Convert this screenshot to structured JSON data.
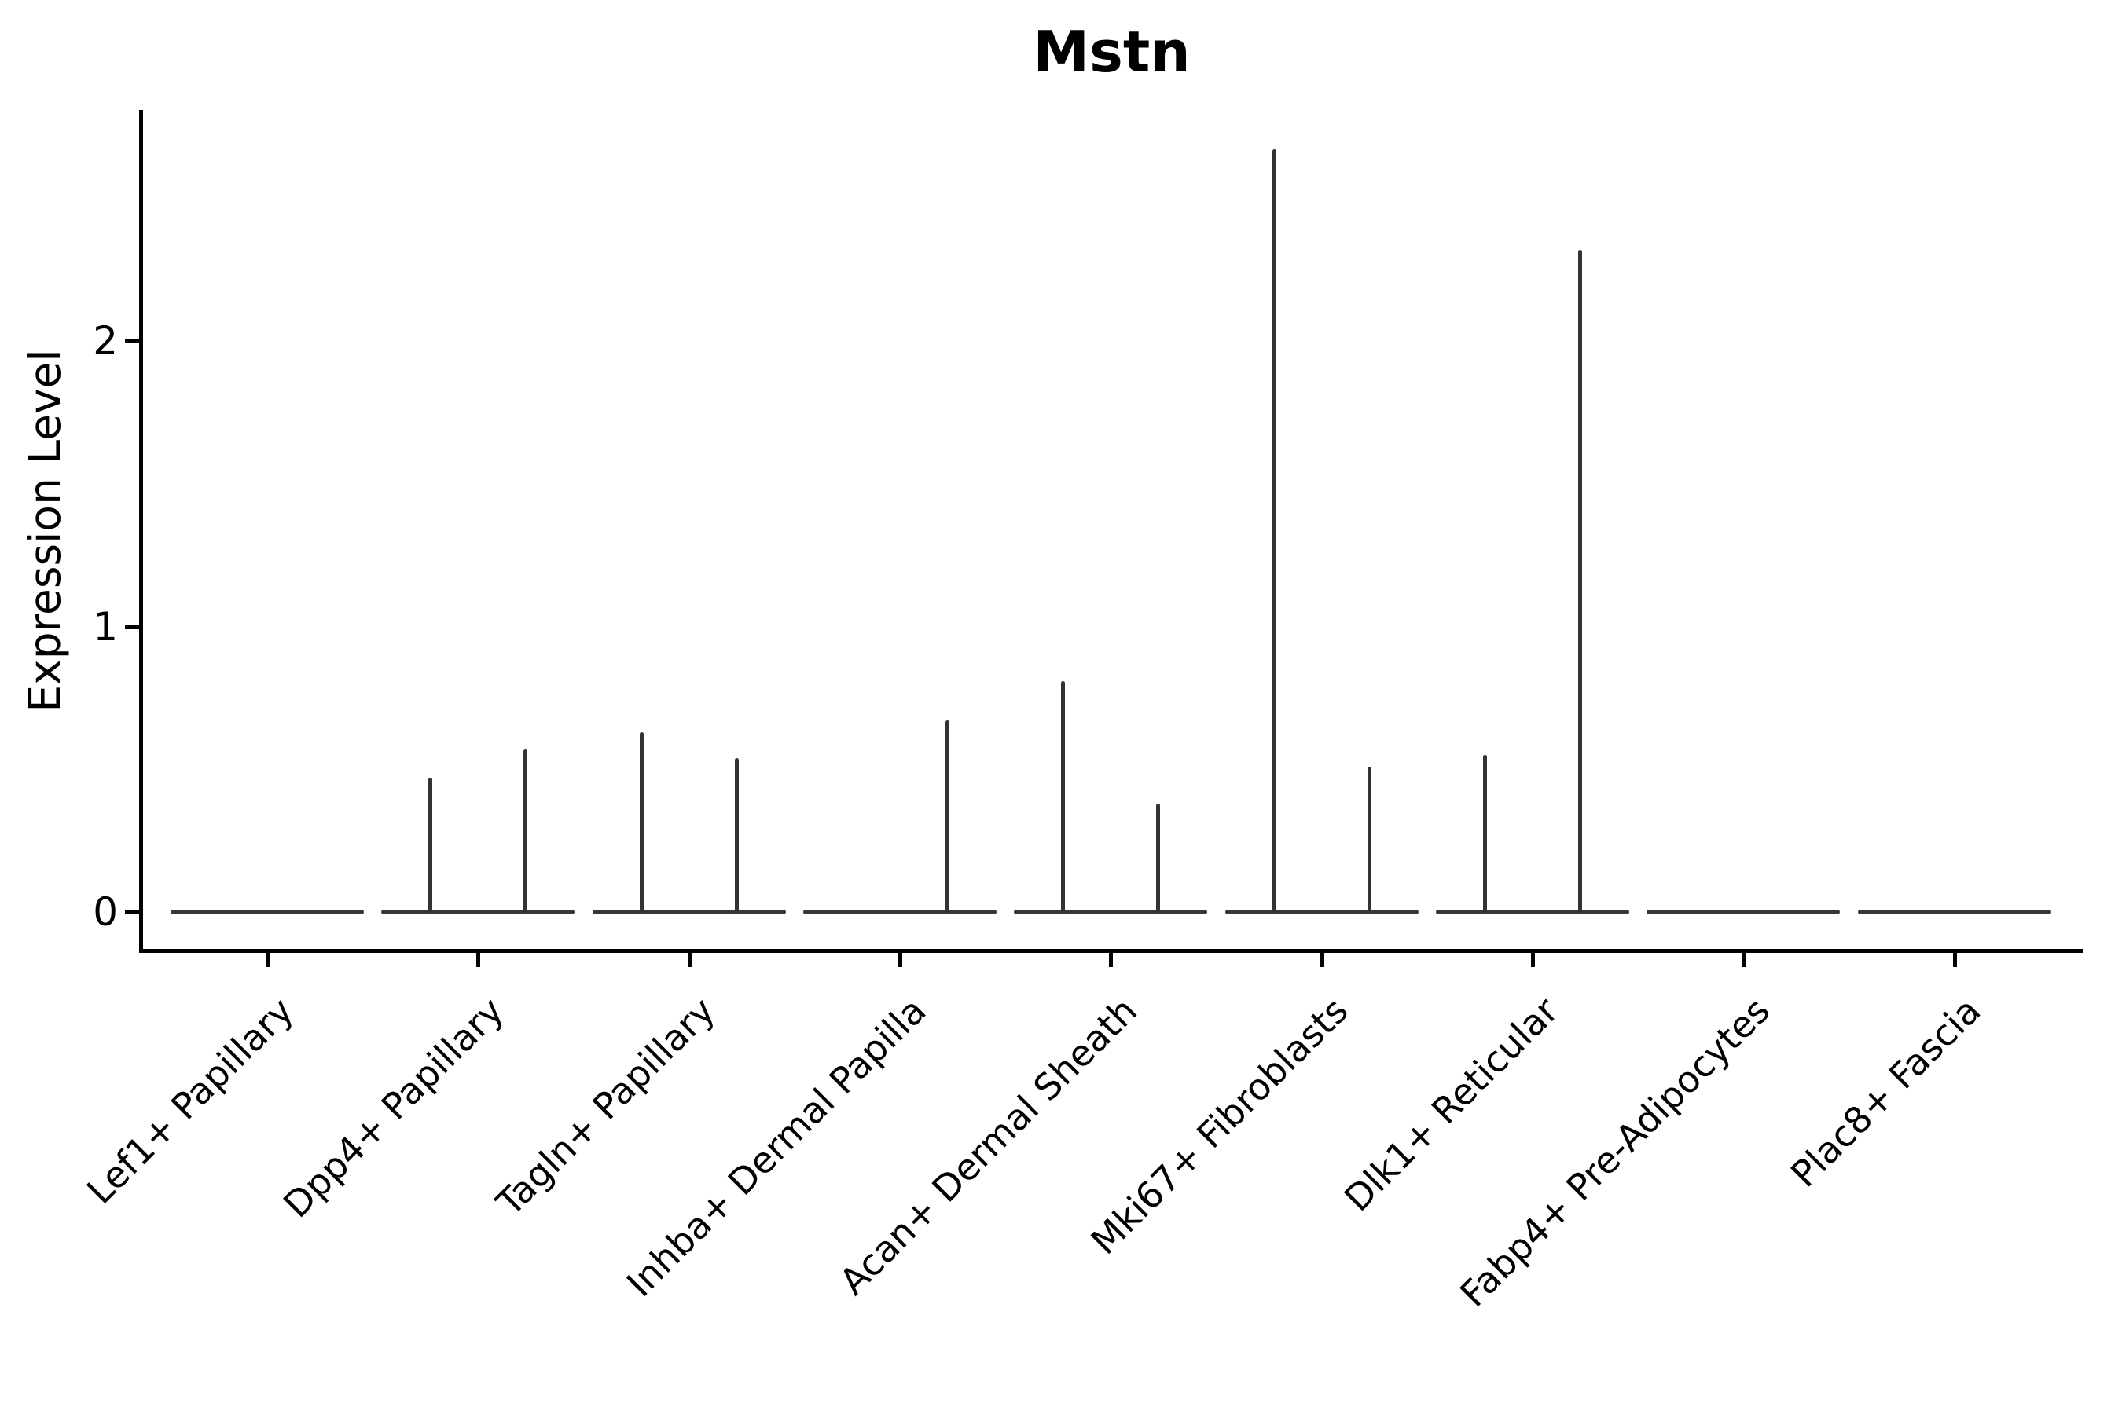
{
  "chart_data": {
    "type": "violin",
    "title": "Mstn",
    "xlabel": "",
    "ylabel": "Expression Level",
    "yticks": [
      0,
      1,
      2
    ],
    "ylim": [
      -0.14,
      2.81
    ],
    "grid": false,
    "legend": false,
    "categories": [
      "Lef1+ Papillary",
      "Dpp4+ Papillary",
      "Tagln+ Papillary",
      "Inhba+ Dermal Papilla",
      "Acan+ Dermal Sheath",
      "Mki67+ Fibroblasts",
      "Dlk1+ Reticular",
      "Fabp4+ Pre-Adipocytes",
      "Plac8+ Fascia"
    ],
    "violins": [
      {
        "category": "Lef1+ Papillary",
        "baseline_value": 0,
        "spikes": []
      },
      {
        "category": "Dpp4+ Papillary",
        "baseline_value": 0,
        "spikes": [
          {
            "position": "left",
            "max_value": 0.47
          },
          {
            "position": "right",
            "max_value": 0.57
          }
        ]
      },
      {
        "category": "Tagln+ Papillary",
        "baseline_value": 0,
        "spikes": [
          {
            "position": "left",
            "max_value": 0.63
          },
          {
            "position": "right",
            "max_value": 0.54
          }
        ]
      },
      {
        "category": "Inhba+ Dermal Papilla",
        "baseline_value": 0,
        "spikes": [
          {
            "position": "right",
            "max_value": 0.67
          }
        ]
      },
      {
        "category": "Acan+ Dermal Sheath",
        "baseline_value": 0,
        "spikes": [
          {
            "position": "left",
            "max_value": 0.81
          },
          {
            "position": "right",
            "max_value": 0.38
          }
        ]
      },
      {
        "category": "Mki67+ Fibroblasts",
        "baseline_value": 0,
        "spikes": [
          {
            "position": "left",
            "max_value": 2.67
          },
          {
            "position": "right",
            "max_value": 0.51
          }
        ]
      },
      {
        "category": "Dlk1+ Reticular",
        "baseline_value": 0,
        "spikes": [
          {
            "position": "left",
            "max_value": 0.55
          },
          {
            "position": "right",
            "max_value": 2.32
          }
        ]
      },
      {
        "category": "Fabp4+ Pre-Adipocytes",
        "baseline_value": 0,
        "spikes": []
      },
      {
        "category": "Plac8+ Fascia",
        "baseline_value": 0,
        "spikes": []
      }
    ],
    "colors": {
      "violin_stroke": "#333333",
      "axis": "#000000",
      "text": "#000000",
      "background": "#ffffff"
    }
  }
}
